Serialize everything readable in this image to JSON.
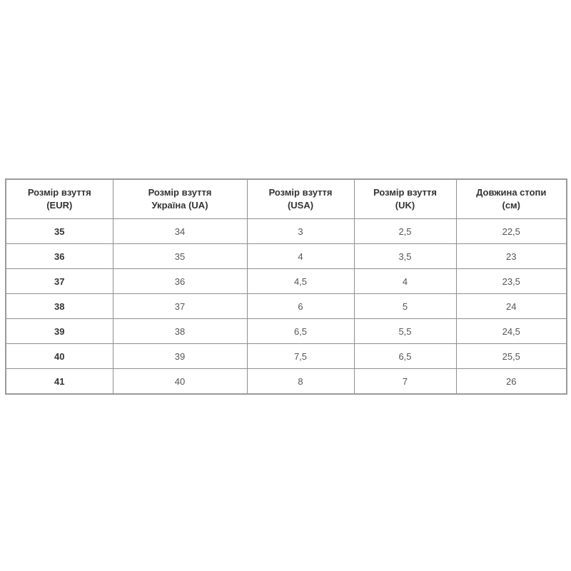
{
  "table": {
    "headers": [
      [
        "Розмір взуття",
        "(EUR)"
      ],
      [
        "Розмір взуття",
        "Україна (UA)"
      ],
      [
        "Розмір взуття",
        "(USA)"
      ],
      [
        "Розмір взуття",
        "(UK)"
      ],
      [
        "Довжина стопи",
        "(см)"
      ]
    ],
    "rows": [
      [
        "35",
        "34",
        "3",
        "2,5",
        "22,5"
      ],
      [
        "36",
        "35",
        "4",
        "3,5",
        "23"
      ],
      [
        "37",
        "36",
        "4,5",
        "4",
        "23,5"
      ],
      [
        "38",
        "37",
        "6",
        "5",
        "24"
      ],
      [
        "39",
        "38",
        "6,5",
        "5,5",
        "24,5"
      ],
      [
        "40",
        "39",
        "7,5",
        "6,5",
        "25,5"
      ],
      [
        "41",
        "40",
        "8",
        "7",
        "26"
      ]
    ]
  }
}
